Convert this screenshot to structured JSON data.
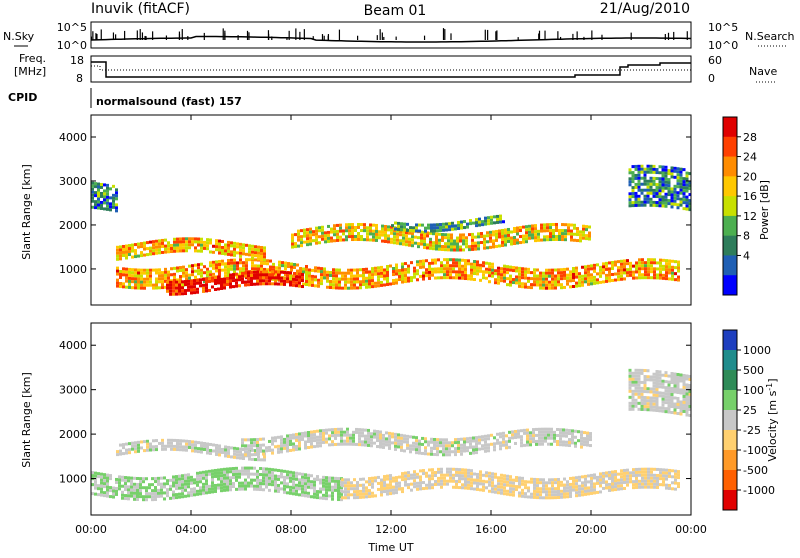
{
  "header": {
    "station": "Inuvik (fitACF)",
    "beam": "Beam 01",
    "date": "21/Aug/2010"
  },
  "noise_panel": {
    "left_label": "N.Sky",
    "left_ticks": [
      "10^5",
      "10^0"
    ],
    "right_label": "N.Search",
    "right_ticks": [
      "10^5",
      "10^0"
    ]
  },
  "freq_panel": {
    "left_label_1": "Freq.",
    "left_label_2": "[MHz]",
    "left_ticks": [
      "18",
      "8"
    ],
    "right_label": "Nave",
    "right_ticks": [
      "60",
      "0"
    ]
  },
  "cpid": {
    "label": "CPID",
    "value": "normalsound (fast) 157"
  },
  "power_panel": {
    "ylabel": "Slant Range [km]",
    "yticks": [
      "4000",
      "3000",
      "2000",
      "1000"
    ],
    "colorbar_label": "Power [dB]",
    "colorbar_ticks": [
      "28",
      "24",
      "20",
      "16",
      "12",
      "8",
      "4"
    ],
    "colorbar_colors": [
      "#e00000",
      "#ff4000",
      "#ff8c00",
      "#ffc800",
      "#c8e000",
      "#4caf50",
      "#2e7d5b",
      "#1f5fb4",
      "#0000ff"
    ]
  },
  "velocity_panel": {
    "ylabel": "Slant Range [km]",
    "yticks": [
      "4000",
      "3000",
      "2000",
      "1000"
    ],
    "colorbar_label": "Velocity [m s",
    "colorbar_label_sup": "-1",
    "colorbar_label_end": "]",
    "colorbar_ticks": [
      "1000",
      "500",
      "100",
      "25",
      "-25",
      "-100",
      "-500",
      "-1000"
    ],
    "colorbar_colors": [
      "#1e3fbf",
      "#1f8c8c",
      "#2e8b57",
      "#77d06a",
      "#c8c8c8",
      "#ffd070",
      "#ff9a28",
      "#ff6000",
      "#e00000"
    ]
  },
  "xaxis": {
    "label": "Time UT",
    "ticks": [
      "00:00",
      "04:00",
      "08:00",
      "12:00",
      "16:00",
      "20:00",
      "00:00"
    ]
  },
  "chart_data": {
    "type": "heatmap",
    "title": "Inuvik (fitACF) Beam 01 21/Aug/2010",
    "xlabel": "Time UT",
    "ylabel": "Slant Range [km]",
    "xlim": [
      "00:00",
      "24:00"
    ],
    "ylim": [
      180,
      4500
    ],
    "panels": [
      {
        "name": "Power [dB]",
        "zlim": [
          0,
          30
        ],
        "bands": [
          {
            "t_start": 1.0,
            "t_end": 23.5,
            "range_center": 900,
            "range_width": 450,
            "value": 20
          },
          {
            "t_start": 3.0,
            "t_end": 8.5,
            "range_center": 700,
            "range_width": 300,
            "value": 28
          },
          {
            "t_start": 1.0,
            "t_end": 7.0,
            "range_center": 1450,
            "range_width": 300,
            "value": 20
          },
          {
            "t_start": 8.0,
            "t_end": 20.0,
            "range_center": 1750,
            "range_width": 350,
            "value": 18
          },
          {
            "t_start": 12.0,
            "t_end": 16.5,
            "range_center": 2050,
            "range_width": 200,
            "value": 10
          },
          {
            "t_start": 0.0,
            "t_end": 1.0,
            "range_center": 2600,
            "range_width": 600,
            "value": 8
          },
          {
            "t_start": 21.5,
            "t_end": 24.0,
            "range_center": 2800,
            "range_width": 900,
            "value": 8
          }
        ]
      },
      {
        "name": "Velocity [m s-1]",
        "zlim": [
          -1000,
          1000
        ],
        "bands": [
          {
            "t_start": 0.0,
            "t_end": 10.0,
            "range_center": 900,
            "range_width": 500,
            "value": 150
          },
          {
            "t_start": 10.0,
            "t_end": 23.5,
            "range_center": 900,
            "range_width": 450,
            "value": -120
          },
          {
            "t_start": 1.0,
            "t_end": 7.0,
            "range_center": 1650,
            "range_width": 250,
            "value": 0
          },
          {
            "t_start": 6.0,
            "t_end": 20.0,
            "range_center": 1850,
            "range_width": 350,
            "value": 0
          },
          {
            "t_start": 21.5,
            "t_end": 24.0,
            "range_center": 2900,
            "range_width": 900,
            "value": 0
          }
        ]
      }
    ]
  }
}
